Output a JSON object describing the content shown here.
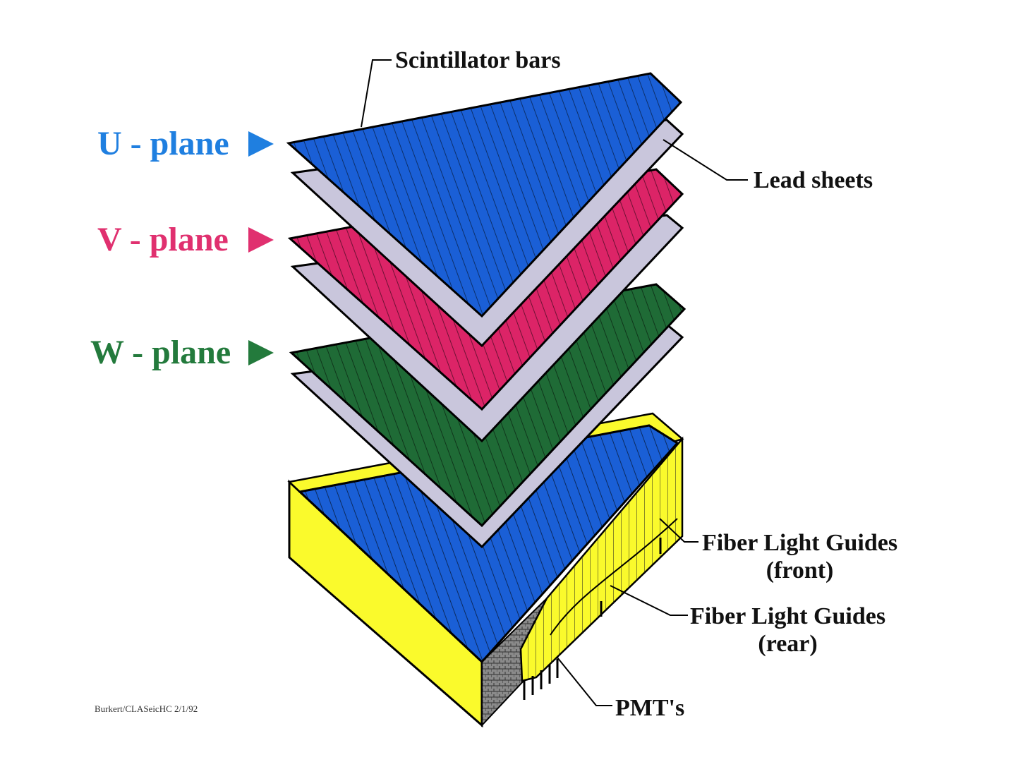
{
  "labels": {
    "u_plane": "U - plane",
    "v_plane": "V - plane",
    "w_plane": "W - plane",
    "scintillator_bars": "Scintillator bars",
    "lead_sheets": "Lead sheets",
    "fiber_front_line1": "Fiber Light Guides",
    "fiber_front_line2": "(front)",
    "fiber_rear_line1": "Fiber Light Guides",
    "fiber_rear_line2": "(rear)",
    "pmts": "PMT's",
    "credit": "Burkert/CLASeicHC 2/1/92"
  },
  "colors": {
    "u_plane": "#1a5fd6",
    "v_plane": "#dc2467",
    "w_plane": "#1f6b36",
    "lead_sheet": "#c9c6dc",
    "housing_yellow": "#fafa2c",
    "u_label_text": "#1f7fe0",
    "v_label_text": "#e0306f",
    "w_label_text": "#237a3c"
  }
}
